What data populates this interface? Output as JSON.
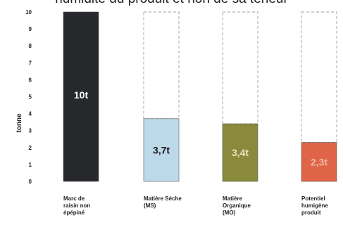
{
  "top_caption": "humidité du produit et non de sa teneur",
  "chart_data": {
    "type": "bar",
    "categories": [
      [
        "Marc de",
        "raisin non",
        "épépiné"
      ],
      [
        "Matière Sèche",
        "(MS)"
      ],
      [
        "Matière",
        "Organique",
        "(MO)"
      ],
      [
        "Potentiel",
        "humigène",
        "produit"
      ]
    ],
    "values": [
      10,
      3.7,
      3.4,
      2.3
    ],
    "value_labels": [
      "10t",
      "3,7t",
      "3,4t",
      "2,3t"
    ],
    "reference_values": [
      null,
      10,
      10,
      10
    ],
    "ylabel": "tonne",
    "ylim": [
      0,
      10
    ],
    "yticks": [
      0,
      1,
      2,
      3,
      4,
      5,
      6,
      7,
      8,
      9,
      10
    ],
    "grid": false,
    "colors": [
      "#26282b",
      "#bcd9ea",
      "#8a8a3c",
      "#e06548"
    ],
    "label_colors": [
      "#ffffff",
      "#1a1a1a",
      "#e9e3c0",
      "#f0b9a7"
    ],
    "reference_color": "#b5b5b5"
  }
}
